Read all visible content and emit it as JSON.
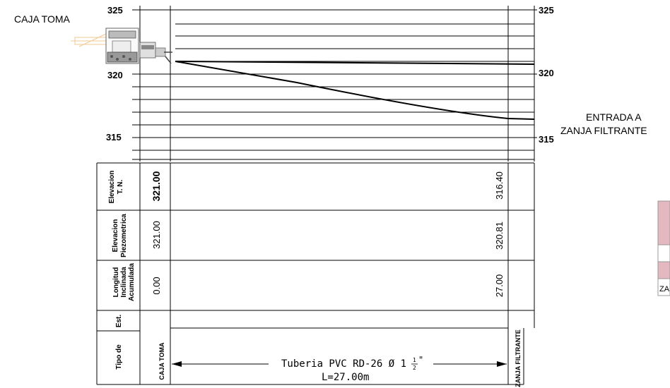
{
  "labels": {
    "start_station": "CAJA TOMA",
    "end_station_line1": "ENTRADA A",
    "end_station_line2": "ZANJA FILTRANTE",
    "cropped_text": "ZA"
  },
  "elevation_axis": {
    "ticks": [
      "325",
      "320",
      "315"
    ]
  },
  "table": {
    "row_headers": [
      [
        "Elevacion",
        "T. N."
      ],
      [
        "Elevacion",
        "Piezometrica"
      ],
      [
        "Longitud",
        "Inclinada",
        "Acumulada"
      ],
      [
        "Est."
      ],
      [
        "Tipo de"
      ]
    ],
    "start_values": {
      "terrain": "321.00",
      "piezometric": "321.00",
      "length": "0.00",
      "type": "CAJA TOMA"
    },
    "end_values": {
      "terrain": "316.40",
      "piezometric": "320.81",
      "length": "27.00",
      "type": "ZANJA FILTRANTE"
    },
    "pipe_line1": "Tuberia PVC RD-26 Ø 1",
    "pipe_fraction_num": "1",
    "pipe_fraction_den": "2",
    "pipe_inch": "\"",
    "pipe_line2": "L=27.00m"
  },
  "profile": {
    "terrain": [
      [
        0,
        321.0
      ],
      [
        27.0,
        316.4
      ]
    ],
    "piezometric": [
      [
        0,
        321.0
      ],
      [
        27.0,
        320.81
      ]
    ]
  },
  "colors": {
    "line": "#000000",
    "pink_legend": "#e3b8c0",
    "drawing_faint": "#f0c890"
  }
}
